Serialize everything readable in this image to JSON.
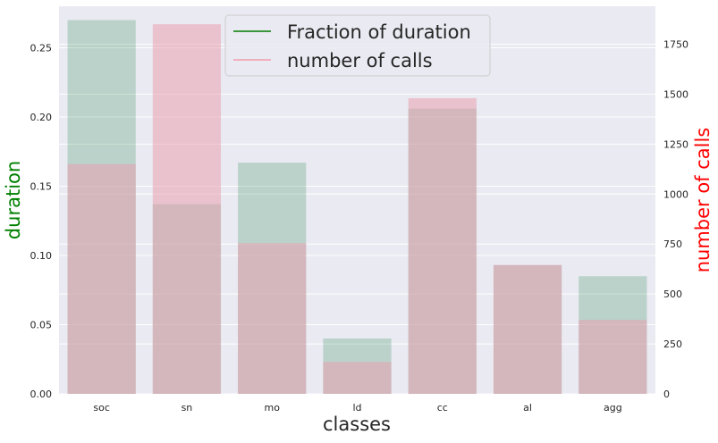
{
  "chart_data": {
    "type": "bar",
    "categories": [
      "soc",
      "sn",
      "mo",
      "ld",
      "cc",
      "al",
      "agg"
    ],
    "xlabel": "classes",
    "ylabel_left": "duration",
    "ylabel_right": "number of calls",
    "series": [
      {
        "name": "Fraction of duration",
        "axis": "left",
        "color": "#2e8b57",
        "legend_color": "#228b22",
        "values": [
          0.27,
          0.137,
          0.167,
          0.04,
          0.206,
          0.093,
          0.085
        ]
      },
      {
        "name": "number of calls",
        "axis": "right",
        "color": "#e8a0b0",
        "legend_color": "#f4a6b4",
        "values": [
          1150,
          1850,
          755,
          160,
          1480,
          645,
          370
        ]
      }
    ],
    "ylim_left": [
      0,
      0.28
    ],
    "ylim_right": [
      0,
      1940
    ],
    "yticks_left": [
      "0.00",
      "0.05",
      "0.10",
      "0.15",
      "0.20",
      "0.25"
    ],
    "yticks_left_values": [
      0,
      0.05,
      0.1,
      0.15,
      0.2,
      0.25
    ],
    "yticks_right": [
      "0",
      "250",
      "500",
      "750",
      "1000",
      "1250",
      "1500",
      "1750"
    ],
    "yticks_right_values": [
      0,
      250,
      500,
      750,
      1000,
      1250,
      1500,
      1750
    ],
    "grid": true,
    "legend_position": "top-center",
    "colors": {
      "background": "#eaeaf2",
      "grid": "#ffffff",
      "ylabel_left": "#008000",
      "ylabel_right": "#ff0000",
      "text": "#262626"
    }
  }
}
